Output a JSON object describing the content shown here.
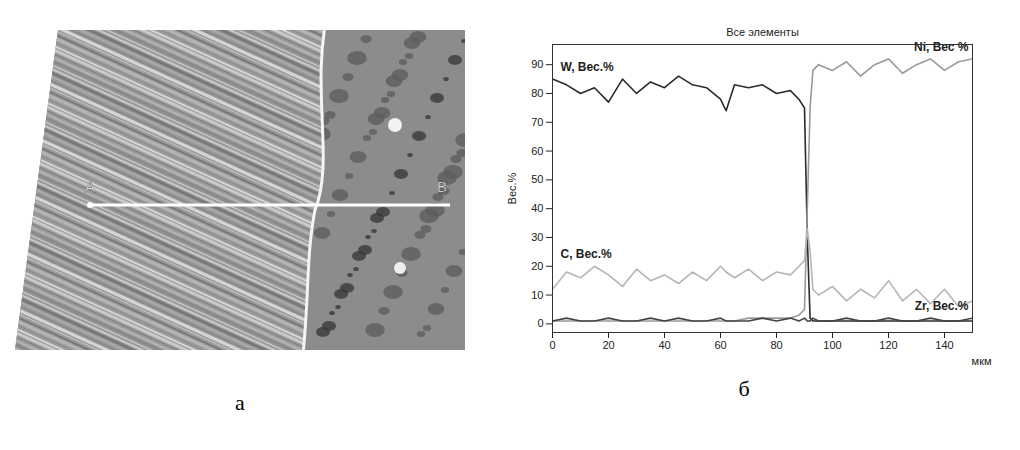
{
  "micrograph": {
    "letter": "а",
    "line_start": "A",
    "line_end": "B"
  },
  "chart_data": {
    "type": "line",
    "letter": "б",
    "title": "Все элементы",
    "y_label": "Вес.%",
    "x_label": "мкм",
    "x": [
      0,
      5,
      10,
      15,
      20,
      25,
      30,
      35,
      40,
      45,
      50,
      55,
      60,
      62,
      65,
      70,
      75,
      80,
      85,
      88,
      90,
      91,
      92,
      93,
      95,
      100,
      105,
      110,
      115,
      120,
      125,
      130,
      135,
      140,
      145,
      150
    ],
    "series": [
      {
        "name": "W, Вес.%",
        "color": "#2b2b2b",
        "values": [
          85,
          83,
          80,
          82,
          77,
          85,
          80,
          84,
          82,
          86,
          83,
          82,
          78,
          74,
          83,
          82,
          83,
          80,
          81,
          78,
          75,
          30,
          2,
          1,
          1,
          1,
          1,
          1,
          1,
          1,
          1,
          1,
          1,
          1,
          1,
          1
        ]
      },
      {
        "name": "Ni, Вес %",
        "color": "#9a9a9a",
        "values": [
          1,
          1,
          1,
          1,
          1,
          1,
          1,
          1,
          1,
          1,
          1,
          1,
          1,
          1,
          1,
          2,
          2,
          2,
          2,
          3,
          5,
          40,
          75,
          88,
          90,
          88,
          91,
          86,
          90,
          92,
          87,
          90,
          92,
          88,
          91,
          92
        ]
      },
      {
        "name": "C, Вес.%",
        "color": "#b5b5b5",
        "values": [
          12,
          18,
          16,
          20,
          17,
          13,
          19,
          15,
          17,
          14,
          18,
          15,
          20,
          18,
          16,
          19,
          15,
          18,
          17,
          20,
          22,
          33,
          25,
          12,
          10,
          13,
          8,
          12,
          9,
          15,
          8,
          12,
          7,
          12,
          6,
          8
        ]
      },
      {
        "name": "Zr, Вес.%",
        "color": "#444444",
        "values": [
          1,
          2,
          1,
          1,
          2,
          1,
          1,
          2,
          1,
          2,
          1,
          1,
          2,
          1,
          1,
          1,
          2,
          1,
          2,
          1,
          2,
          1,
          1,
          2,
          1,
          1,
          2,
          1,
          1,
          2,
          1,
          1,
          2,
          1,
          1,
          2
        ]
      }
    ],
    "xlim": [
      0,
      150
    ],
    "xticks": [
      0,
      20,
      40,
      60,
      80,
      100,
      120,
      140
    ],
    "ylim": [
      -3,
      97
    ],
    "yticks": [
      0,
      10,
      20,
      30,
      40,
      50,
      60,
      70,
      80,
      90
    ],
    "grid": false
  }
}
